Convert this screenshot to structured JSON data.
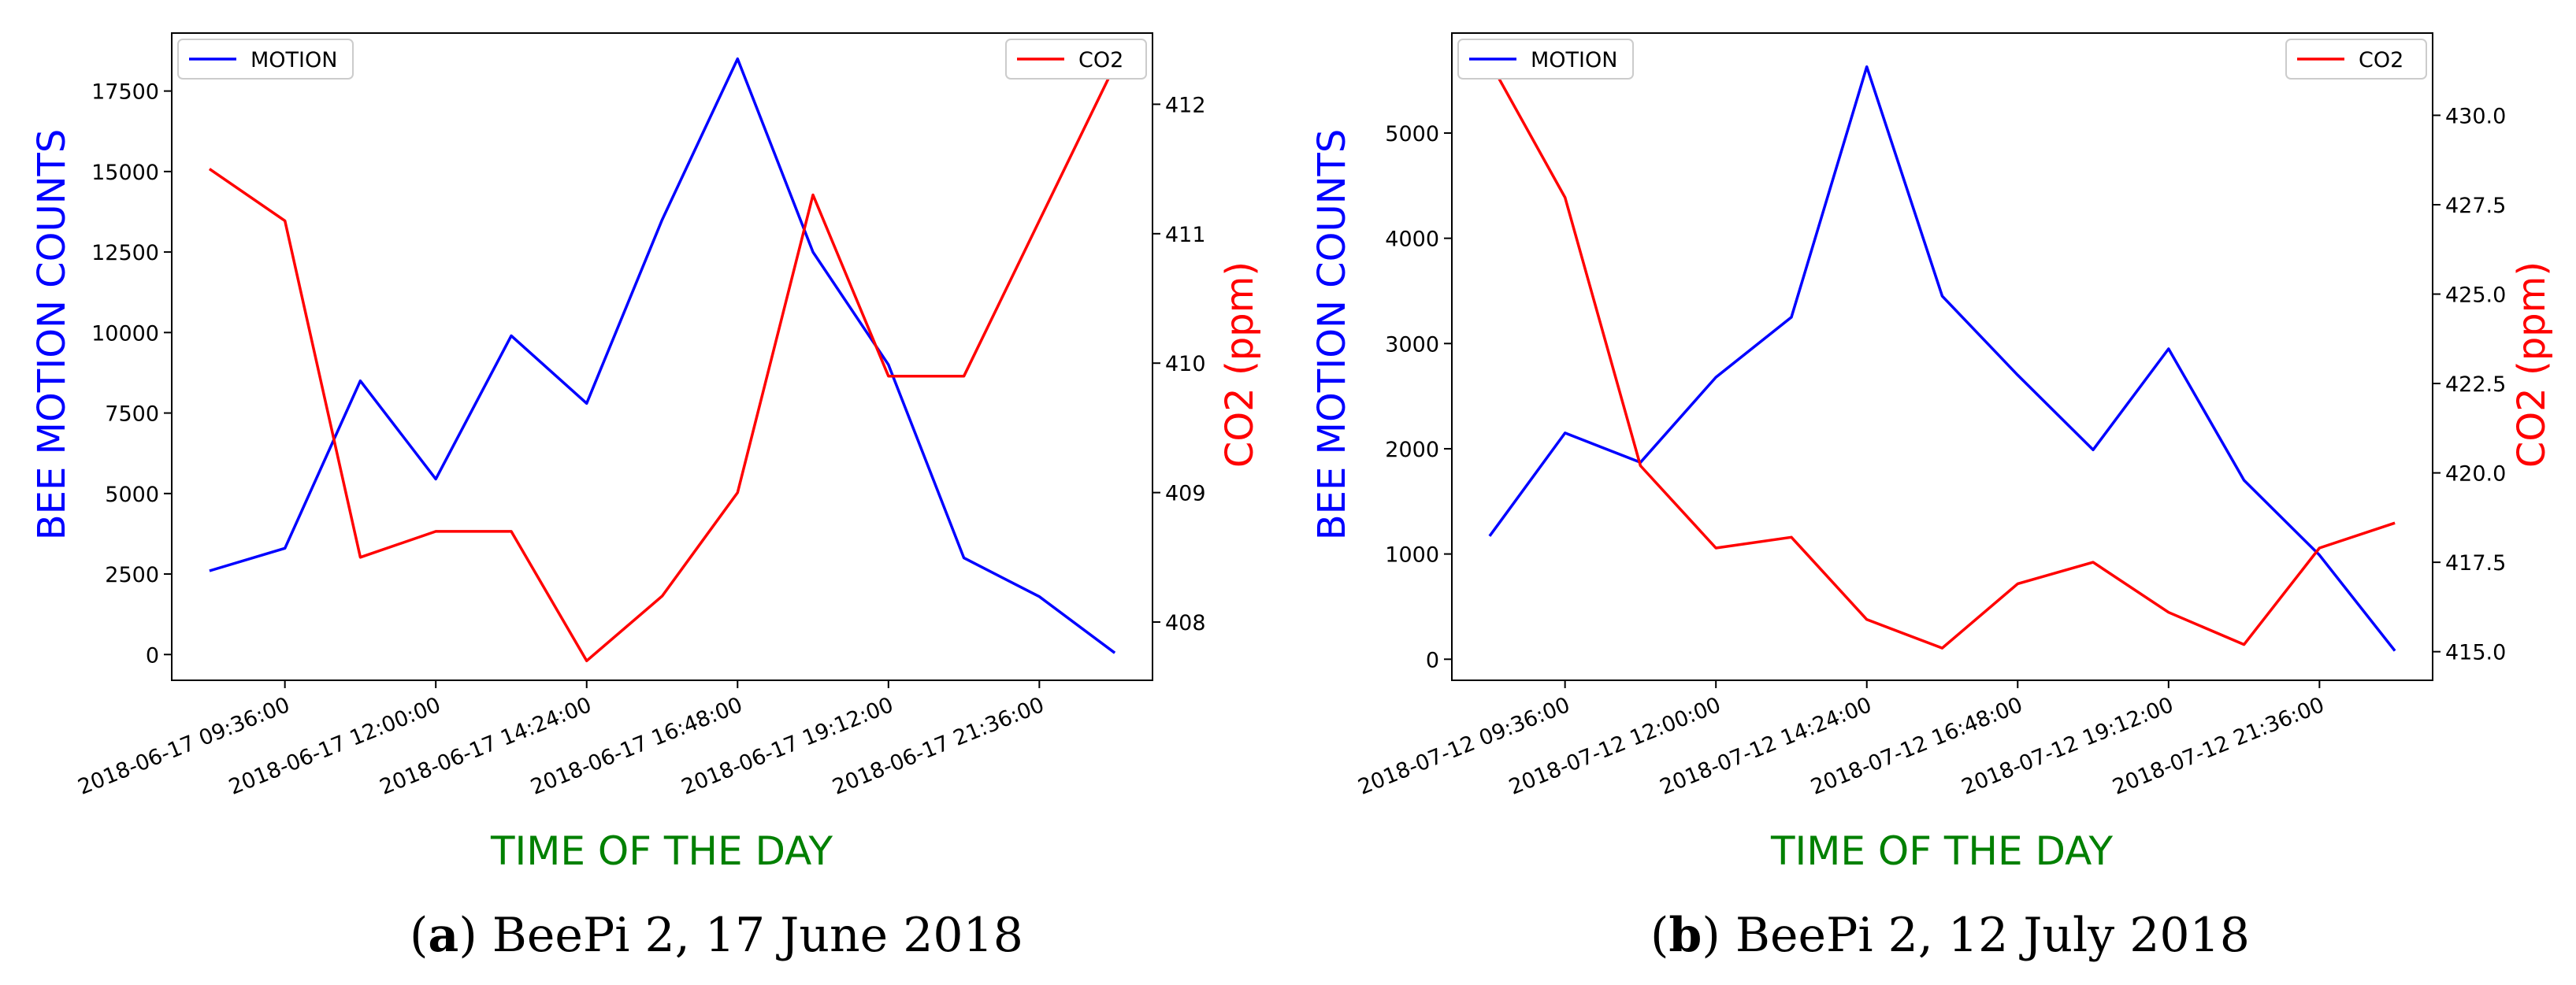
{
  "chart_data": [
    {
      "type": "line",
      "panel_letter": "a",
      "caption_text": " BeePi 2, 17 June 2018",
      "xlabel": "TIME OF THE DAY",
      "ylabel_left": "BEE MOTION COUNTS",
      "ylabel_right": "CO2 (ppm)",
      "x_tick_labels": [
        "2018-06-17 09:36:00",
        "2018-06-17 12:00:00",
        "2018-06-17 14:24:00",
        "2018-06-17 16:48:00",
        "2018-06-17 19:12:00",
        "2018-06-17 21:36:00"
      ],
      "xlim": [
        0,
        13.0
      ],
      "ylim_left": [
        -800,
        19300
      ],
      "ylim_right": [
        407.55,
        412.55
      ],
      "y_ticks_left": [
        0,
        2500,
        5000,
        7500,
        10000,
        12500,
        15000,
        17500
      ],
      "y_ticks_right": [
        408,
        409,
        410,
        411,
        412
      ],
      "colors": {
        "motion": "#0000ff",
        "co2": "#ff0000",
        "xlabel": "#008000"
      },
      "series": [
        {
          "name": "MOTION",
          "axis": "left",
          "x": [
            0.5,
            1.5,
            2.5,
            3.5,
            4.5,
            5.5,
            6.5,
            7.5,
            8.5,
            9.5,
            10.5,
            11.5,
            12.5
          ],
          "values": [
            2600,
            3300,
            8500,
            5450,
            9900,
            7800,
            13500,
            18500,
            12500,
            9000,
            3000,
            1800,
            50
          ]
        },
        {
          "name": "CO2",
          "axis": "right",
          "x": [
            0.5,
            1.5,
            2.5,
            3.5,
            4.5,
            5.5,
            6.5,
            7.5,
            8.5,
            9.5,
            10.5,
            11.5,
            12.5
          ],
          "values": [
            411.5,
            411.1,
            408.5,
            408.7,
            408.7,
            407.7,
            408.2,
            409.0,
            411.3,
            409.9,
            409.9,
            411.1,
            412.3
          ]
        }
      ]
    },
    {
      "type": "line",
      "panel_letter": "b",
      "caption_text": " BeePi 2, 12 July 2018",
      "xlabel": "TIME OF THE DAY",
      "ylabel_left": "BEE MOTION COUNTS",
      "ylabel_right": "CO2 (ppm)",
      "x_tick_labels": [
        "2018-07-12 09:36:00",
        "2018-07-12 12:00:00",
        "2018-07-12 14:24:00",
        "2018-07-12 16:48:00",
        "2018-07-12 19:12:00",
        "2018-07-12 21:36:00"
      ],
      "xlim": [
        0,
        13.0
      ],
      "ylim_left": [
        -200,
        5950
      ],
      "ylim_right": [
        414.2,
        432.3
      ],
      "y_ticks_left": [
        0,
        1000,
        2000,
        3000,
        4000,
        5000
      ],
      "y_ticks_right": [
        "415.0",
        "417.5",
        "420.0",
        "422.5",
        "425.0",
        "427.5",
        "430.0"
      ],
      "colors": {
        "motion": "#0000ff",
        "co2": "#ff0000",
        "xlabel": "#008000"
      },
      "series": [
        {
          "name": "MOTION",
          "axis": "left",
          "x": [
            0.5,
            1.5,
            2.5,
            3.5,
            4.5,
            5.5,
            6.5,
            7.5,
            8.5,
            9.5,
            10.5,
            11.5,
            12.5
          ],
          "values": [
            1170,
            2150,
            1870,
            2680,
            3250,
            5630,
            3450,
            2700,
            1990,
            2950,
            1700,
            990,
            80
          ]
        },
        {
          "name": "CO2",
          "axis": "right",
          "x": [
            0.5,
            1.5,
            2.5,
            3.5,
            4.5,
            5.5,
            6.5,
            7.5,
            8.5,
            9.5,
            10.5,
            11.5,
            12.5
          ],
          "values": [
            431.5,
            427.7,
            420.2,
            417.9,
            418.2,
            415.9,
            415.1,
            416.9,
            417.5,
            416.1,
            415.2,
            417.9,
            418.6
          ]
        }
      ]
    }
  ]
}
